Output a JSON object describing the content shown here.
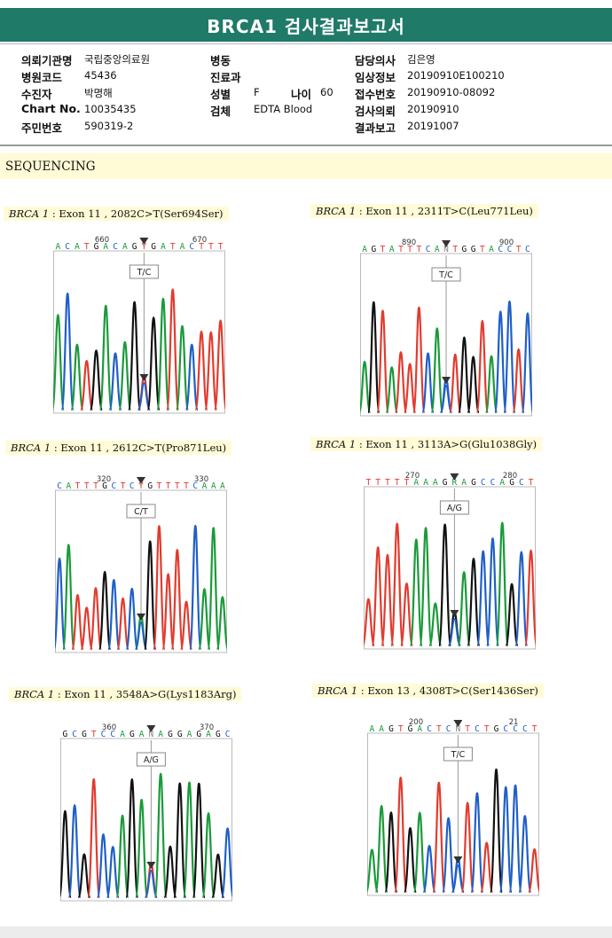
{
  "title": "BRCA1 검사결과보고서",
  "info": {
    "col1": [
      {
        "label": "의뢰기관명",
        "value": "국립중앙의료원"
      },
      {
        "label": "병원코드",
        "value": "45436"
      },
      {
        "label": "수진자",
        "value": "박명해"
      },
      {
        "label": "Chart No.",
        "value": "10035435"
      },
      {
        "label": "주민번호",
        "value": "590319-2"
      }
    ],
    "col2": [
      {
        "label": "병동",
        "value": ""
      },
      {
        "label": "진료과",
        "value": ""
      },
      {
        "label": "성별",
        "value": "F"
      },
      {
        "label": "검체",
        "value": "EDTA Blood"
      }
    ],
    "age": {
      "label": "나이",
      "value": "60"
    },
    "col3": [
      {
        "label": "담당의사",
        "value": "김은영"
      },
      {
        "label": "임상정보",
        "value": "20190910E100210"
      },
      {
        "label": "접수번호",
        "value": "20190910-08092"
      },
      {
        "label": "검사의뢰",
        "value": "20190910"
      },
      {
        "label": "결과보고",
        "value": "20191007"
      }
    ]
  },
  "section_title": "SEQUENCING",
  "panels": [
    {
      "gene": "BRCA 1",
      "variant": ": Exon 11 , 2082C>T(Ser694Ser)",
      "seq": "ACATGACAGYGATACTTT",
      "ticks": [
        "660",
        "670"
      ],
      "call": "T/C",
      "colors": {
        "A": "#1a9a3a",
        "C": "#1f5fc8",
        "G": "#111111",
        "T": "#e23b2e",
        "Y": "#e23b2e",
        "R": "#1a9a3a",
        "N": "#888888"
      }
    },
    {
      "gene": "BRCA 1",
      "variant": ": Exon 11 , 2311T>C(Leu771Leu)",
      "seq": "AGTATTTCANTGGTACCTC",
      "ticks": [
        "890",
        "900"
      ],
      "call": "T/C"
    },
    {
      "gene": "BRCA 1",
      "variant": ": Exon 11 , 2612C>T(Pro871Leu)",
      "seq": "CATTTGCTCYGTTTTCAAA",
      "ticks": [
        "320",
        "330"
      ],
      "call": "C/T"
    },
    {
      "gene": "BRCA 1",
      "variant": ": Exon 11 , 3113A>G(Glu1038Gly)",
      "seq": "TTTTTAAAGRAGCCAGCT",
      "ticks": [
        "270",
        "280"
      ],
      "call": "A/G"
    },
    {
      "gene": "BRCA 1",
      "variant": ": Exon 11 , 3548A>G(Lys1183Arg)",
      "seq": "GCGTCCAGANAGGAGAGC",
      "ticks": [
        "360",
        "370"
      ],
      "call": "A/G"
    },
    {
      "gene": "BRCA 1",
      "variant": ": Exon 13 , 4308T>C(Ser1436Ser)",
      "seq": "AAGTGACTCNTCTGCCCT",
      "ticks": [
        "200",
        "21"
      ],
      "call": "T/C"
    }
  ]
}
